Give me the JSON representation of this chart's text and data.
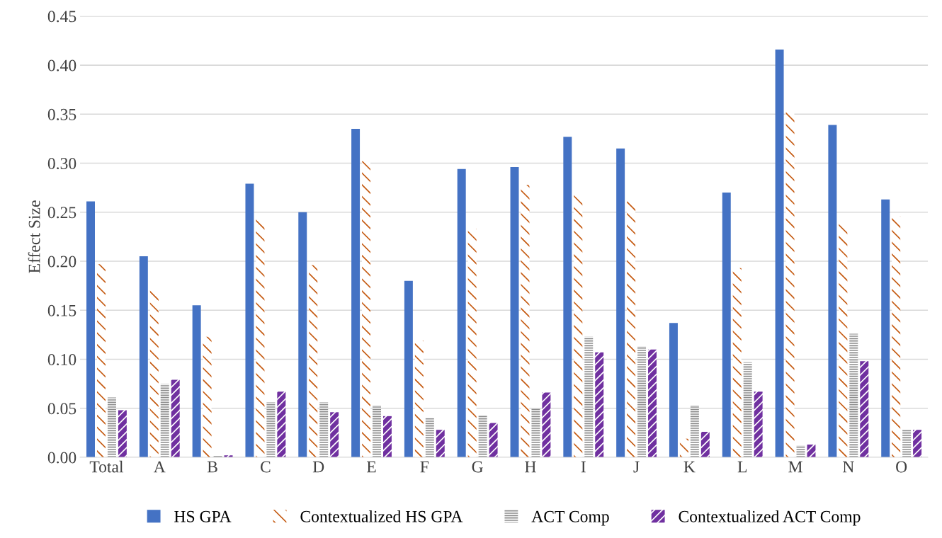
{
  "chart_data": {
    "type": "bar",
    "ylabel": "Effect Size",
    "categories": [
      "Total",
      "A",
      "B",
      "C",
      "D",
      "E",
      "F",
      "G",
      "H",
      "I",
      "J",
      "K",
      "L",
      "M",
      "N",
      "O"
    ],
    "series": [
      {
        "name": "HS GPA",
        "color": "#4472c4",
        "values": [
          0.261,
          0.205,
          0.155,
          0.279,
          0.25,
          0.335,
          0.18,
          0.294,
          0.296,
          0.327,
          0.315,
          0.137,
          0.27,
          0.416,
          0.339,
          0.263
        ]
      },
      {
        "name": "Contextualized HS GPA",
        "color": "#c55a11",
        "values": [
          0.197,
          0.171,
          0.123,
          0.243,
          0.196,
          0.302,
          0.119,
          0.233,
          0.278,
          0.268,
          0.261,
          0.019,
          0.193,
          0.352,
          0.239,
          0.246
        ]
      },
      {
        "name": "ACT Comp",
        "color": "#8c8c8c",
        "values": [
          0.061,
          0.075,
          0.002,
          0.056,
          0.056,
          0.053,
          0.04,
          0.043,
          0.05,
          0.123,
          0.113,
          0.053,
          0.097,
          0.012,
          0.126,
          0.028
        ]
      },
      {
        "name": "Contextualized ACT Comp",
        "color": "#7030a0",
        "values": [
          0.048,
          0.079,
          0.002,
          0.067,
          0.046,
          0.042,
          0.028,
          0.035,
          0.066,
          0.107,
          0.11,
          0.026,
          0.067,
          0.013,
          0.098,
          0.028
        ]
      }
    ],
    "ylim": [
      0,
      0.45
    ],
    "yticks": [
      {
        "value": 0,
        "label": "0.00"
      },
      {
        "value": 0.05,
        "label": "0.05"
      },
      {
        "value": 0.1,
        "label": "0.10"
      },
      {
        "value": 0.15,
        "label": "0.15"
      },
      {
        "value": 0.2,
        "label": "0.20"
      },
      {
        "value": 0.25,
        "label": "0.25"
      },
      {
        "value": 0.3,
        "label": "0.30"
      },
      {
        "value": 0.35,
        "label": "0.35"
      },
      {
        "value": 0.4,
        "label": "0.40"
      },
      {
        "value": 0.45,
        "label": "0.45"
      }
    ],
    "grid": "y",
    "legend": "bottom"
  }
}
